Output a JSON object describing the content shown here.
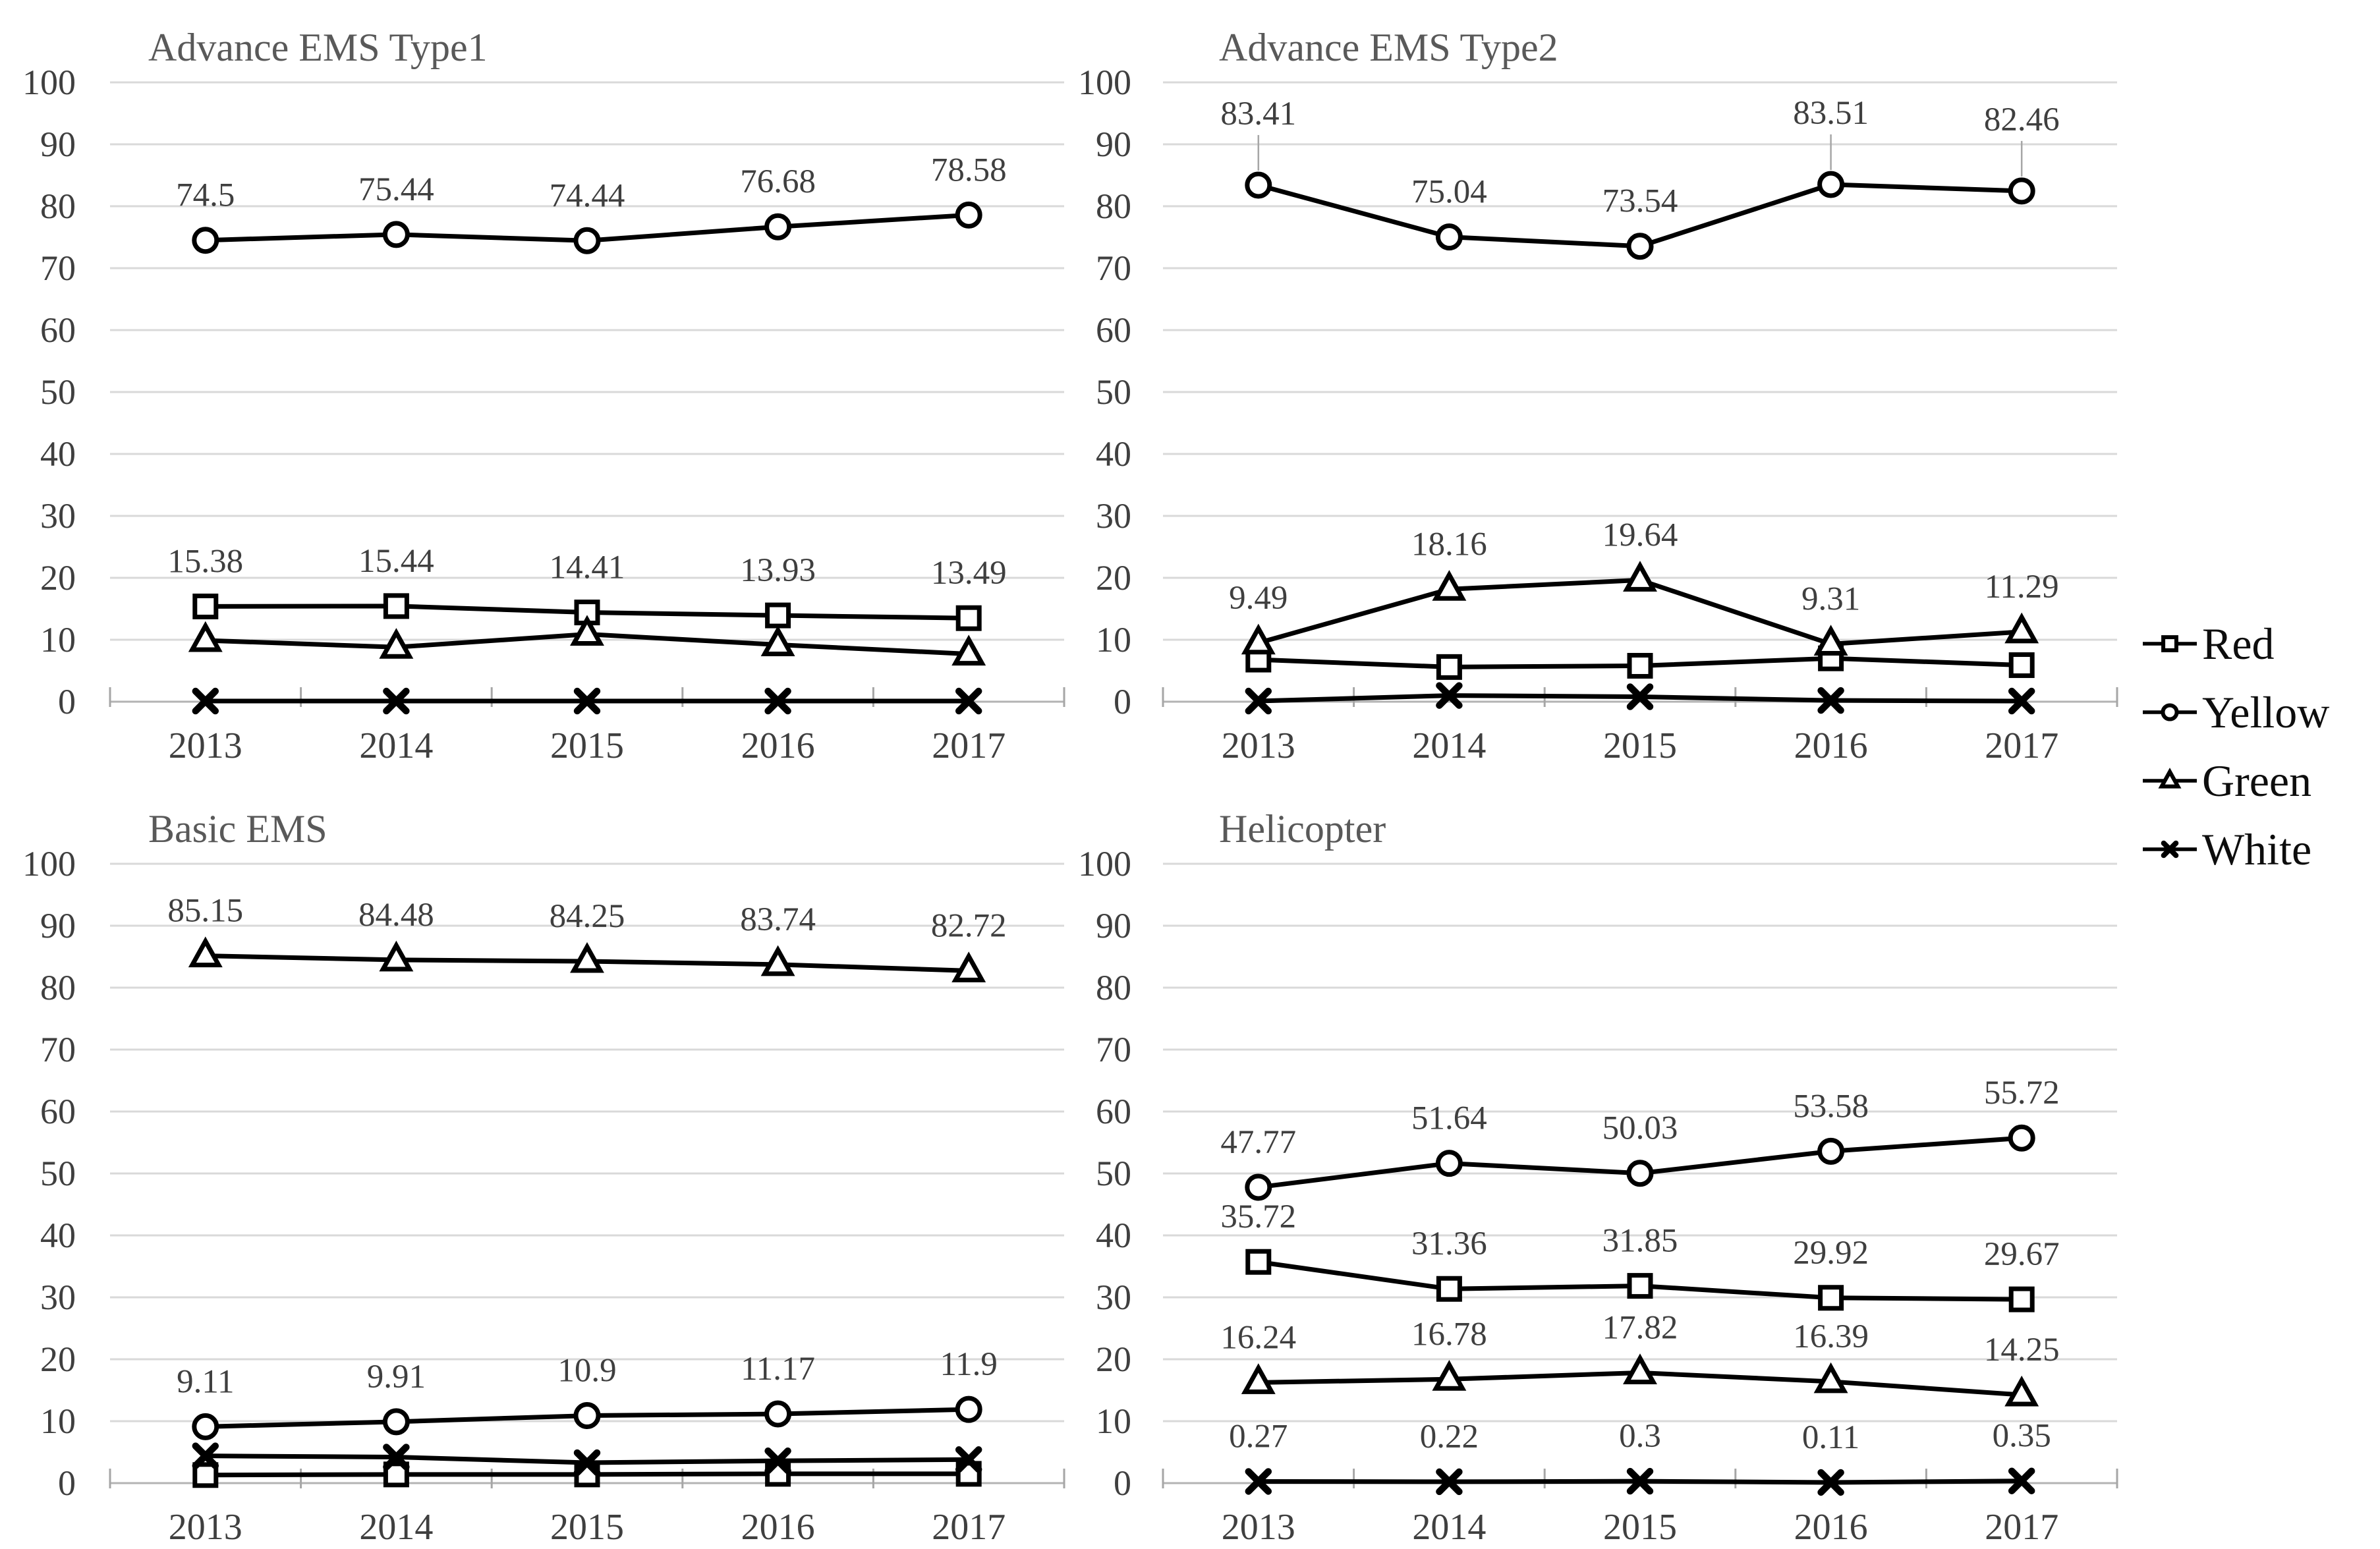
{
  "figure": {
    "description": "Four line charts of triage category percentages by EMS transport type, 2013-2017",
    "background": "#ffffff"
  },
  "colors": {
    "line": "#000000",
    "marker_fill": "#ffffff",
    "grid": "#d9d9d9",
    "axis": "#b3b3b3",
    "tick": "#a6a6a6",
    "leader": "#a6a6a6",
    "title_text": "#595959",
    "axis_text": "#3f3f3f",
    "label_text": "#3f3f3f",
    "legend_text": "#0d0d0d"
  },
  "legend": {
    "position": "right",
    "items": [
      {
        "label": "Red",
        "marker": "square"
      },
      {
        "label": "Yellow",
        "marker": "circle"
      },
      {
        "label": "Green",
        "marker": "triangle"
      },
      {
        "label": "White",
        "marker": "x"
      }
    ]
  },
  "chart_data": [
    {
      "id": "advance-ems-type1",
      "type": "line",
      "title": "Advance EMS Type1",
      "categories": [
        "2013",
        "2014",
        "2015",
        "2016",
        "2017"
      ],
      "ylim": [
        0,
        100
      ],
      "ytick_step": 10,
      "grid": true,
      "series": [
        {
          "name": "Red",
          "marker": "square",
          "values": [
            15.38,
            15.44,
            14.41,
            13.93,
            13.49
          ],
          "labeled": true
        },
        {
          "name": "Yellow",
          "marker": "circle",
          "values": [
            74.5,
            75.44,
            74.44,
            76.68,
            78.58
          ],
          "labeled": true
        },
        {
          "name": "Green",
          "marker": "triangle",
          "values": [
            9.9,
            8.8,
            10.9,
            9.2,
            7.7
          ],
          "labeled": false
        },
        {
          "name": "White",
          "marker": "x",
          "values": [
            0.1,
            0.1,
            0.1,
            0.1,
            0.1
          ],
          "labeled": false
        }
      ]
    },
    {
      "id": "advance-ems-type2",
      "type": "line",
      "title": "Advance EMS Type2",
      "categories": [
        "2013",
        "2014",
        "2015",
        "2016",
        "2017"
      ],
      "ylim": [
        0,
        100
      ],
      "ytick_step": 10,
      "grid": true,
      "series": [
        {
          "name": "Red",
          "marker": "square",
          "values": [
            6.8,
            5.6,
            5.8,
            7.0,
            5.9
          ],
          "labeled": false
        },
        {
          "name": "Yellow",
          "marker": "circle",
          "values": [
            83.41,
            75.04,
            73.54,
            83.51,
            82.46
          ],
          "labeled": true,
          "leader_points": [
            0,
            3,
            4
          ]
        },
        {
          "name": "Green",
          "marker": "triangle",
          "values": [
            9.49,
            18.16,
            19.64,
            9.31,
            11.29
          ],
          "labeled": true
        },
        {
          "name": "White",
          "marker": "x",
          "values": [
            0.1,
            1.0,
            0.8,
            0.2,
            0.1
          ],
          "labeled": false
        }
      ]
    },
    {
      "id": "basic-ems",
      "type": "line",
      "title": "Basic EMS",
      "categories": [
        "2013",
        "2014",
        "2015",
        "2016",
        "2017"
      ],
      "ylim": [
        0,
        100
      ],
      "ytick_step": 10,
      "grid": true,
      "series": [
        {
          "name": "Red",
          "marker": "square",
          "values": [
            1.3,
            1.4,
            1.4,
            1.5,
            1.5
          ],
          "labeled": false
        },
        {
          "name": "Yellow",
          "marker": "circle",
          "values": [
            9.11,
            9.91,
            10.9,
            11.17,
            11.9
          ],
          "labeled": true
        },
        {
          "name": "Green",
          "marker": "triangle",
          "values": [
            85.15,
            84.48,
            84.25,
            83.74,
            82.72
          ],
          "labeled": true
        },
        {
          "name": "White",
          "marker": "x",
          "values": [
            4.4,
            4.2,
            3.3,
            3.6,
            3.8
          ],
          "labeled": false
        }
      ]
    },
    {
      "id": "helicopter",
      "type": "line",
      "title": "Helicopter",
      "categories": [
        "2013",
        "2014",
        "2015",
        "2016",
        "2017"
      ],
      "ylim": [
        0,
        100
      ],
      "ytick_step": 10,
      "grid": true,
      "series": [
        {
          "name": "Red",
          "marker": "square",
          "values": [
            35.72,
            31.36,
            31.85,
            29.92,
            29.67
          ],
          "labeled": true
        },
        {
          "name": "Yellow",
          "marker": "circle",
          "values": [
            47.77,
            51.64,
            50.03,
            53.58,
            55.72
          ],
          "labeled": true
        },
        {
          "name": "Green",
          "marker": "triangle",
          "values": [
            16.24,
            16.78,
            17.82,
            16.39,
            14.25
          ],
          "labeled": true
        },
        {
          "name": "White",
          "marker": "x",
          "values": [
            0.27,
            0.22,
            0.3,
            0.11,
            0.35
          ],
          "labeled": true
        }
      ]
    }
  ]
}
